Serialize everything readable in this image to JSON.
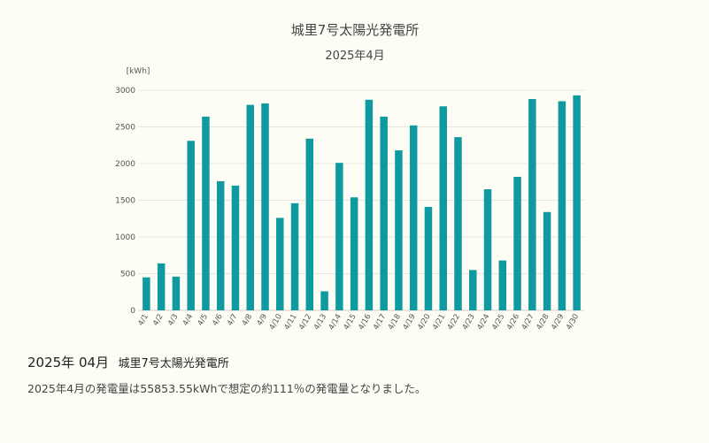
{
  "chart_data": {
    "type": "bar",
    "title": "城里7号太陽光発電所",
    "subtitle": "2025年4月",
    "unit_label": "[kWh]",
    "ylim": [
      0,
      3000
    ],
    "yticks": [
      "0",
      "500",
      "1000",
      "1500",
      "2000",
      "2500",
      "3000"
    ],
    "grid": true,
    "bar_color": "#0f9a9f",
    "categories": [
      "4/1",
      "4/2",
      "4/3",
      "4/4",
      "4/5",
      "4/6",
      "4/7",
      "4/8",
      "4/9",
      "4/10",
      "4/11",
      "4/12",
      "4/13",
      "4/14",
      "4/15",
      "4/16",
      "4/17",
      "4/18",
      "4/19",
      "4/20",
      "4/21",
      "4/22",
      "4/23",
      "4/24",
      "4/25",
      "4/26",
      "4/27",
      "4/28",
      "4/29",
      "4/30"
    ],
    "values": [
      450,
      640,
      460,
      2310,
      2640,
      1760,
      1700,
      2800,
      2820,
      1260,
      1460,
      2340,
      260,
      2010,
      1540,
      2870,
      2640,
      2180,
      2520,
      1410,
      2780,
      2360,
      550,
      1650,
      680,
      1820,
      2880,
      1340,
      2850,
      2930
    ]
  },
  "footer": {
    "date": "2025年 04月",
    "plant": "城里7号太陽光発電所",
    "summary": "2025年4月の発電量は55853.55kWhで想定の約111％の発電量となりました。"
  }
}
